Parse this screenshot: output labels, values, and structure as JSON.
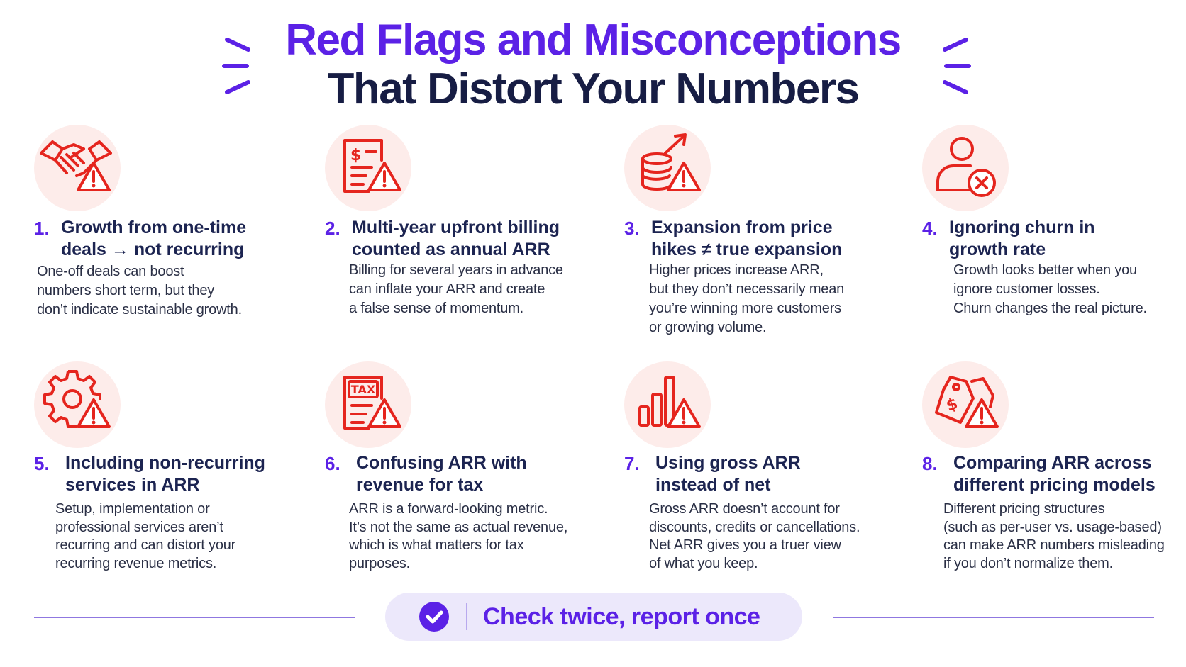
{
  "title": {
    "line1": "Red Flags and Misconceptions",
    "line2": "That Distort Your Numbers"
  },
  "colors": {
    "accent": "#5b21e6",
    "dark": "#171d44",
    "icon_red": "#e5251e",
    "icon_bg": "#fdecea",
    "pill_bg": "#ece8fb"
  },
  "items": [
    {
      "number": "1.",
      "icon": "handshake-warning-icon",
      "heading": [
        "Growth from one-time",
        "deals → not recurring"
      ],
      "description": [
        "One-off deals can boost",
        "numbers short term, but they",
        "don’t indicate sustainable growth."
      ]
    },
    {
      "number": "2.",
      "icon": "invoice-warning-icon",
      "heading": [
        "Multi-year upfront billing",
        "counted as annual ARR"
      ],
      "description": [
        "Billing for several years in advance",
        "can inflate your ARR and create",
        "a false sense of momentum."
      ]
    },
    {
      "number": "3.",
      "icon": "coins-arrow-warning-icon",
      "heading": [
        "Expansion from price",
        "hikes ≠ true expansion"
      ],
      "description": [
        "Higher prices increase ARR,",
        "but they don’t necessarily mean",
        "you’re winning more customers",
        "or growing volume."
      ]
    },
    {
      "number": "4.",
      "icon": "user-remove-icon",
      "heading": [
        "Ignoring churn in",
        "growth rate"
      ],
      "description": [
        "Growth looks better when you",
        "ignore customer losses.",
        "Churn changes the real picture."
      ]
    },
    {
      "number": "5.",
      "icon": "gear-warning-icon",
      "heading": [
        "Including non-recurring",
        "services in ARR"
      ],
      "description": [
        "Setup, implementation or",
        "professional services aren’t",
        "recurring and can distort your",
        "recurring revenue metrics."
      ]
    },
    {
      "number": "6.",
      "icon": "tax-document-warning-icon",
      "heading": [
        "Confusing ARR with",
        "revenue for tax"
      ],
      "description": [
        "ARR is a forward-looking metric.",
        "It’s not the same as actual revenue,",
        "which is what matters for tax",
        "purposes."
      ]
    },
    {
      "number": "7.",
      "icon": "bar-chart-warning-icon",
      "heading": [
        "Using gross ARR",
        "instead of net"
      ],
      "description": [
        "Gross ARR doesn’t account for",
        "discounts, credits or cancellations.",
        "Net ARR gives you a truer view",
        "of what you keep."
      ]
    },
    {
      "number": "8.",
      "icon": "price-tags-warning-icon",
      "heading": [
        "Comparing ARR across",
        "different pricing models"
      ],
      "description": [
        "Different pricing structures",
        "(such as per-user vs. usage-based)",
        "can make ARR numbers misleading",
        "if you don’t normalize them."
      ]
    }
  ],
  "footer": {
    "icon": "checkmark-circle-icon",
    "text": "Check twice, report once"
  },
  "icon_labels": {
    "dollar": "$",
    "tax": "TAX"
  }
}
